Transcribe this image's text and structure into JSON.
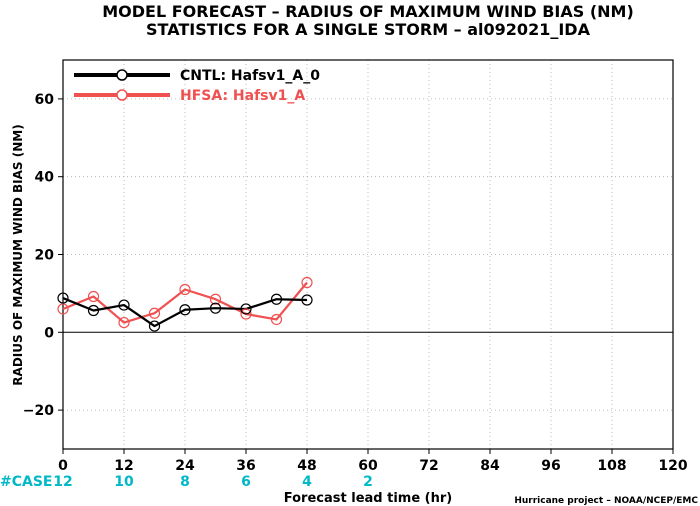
{
  "chart_data": {
    "type": "line",
    "title_line1": "MODEL FORECAST – RADIUS OF MAXIMUM WIND BIAS (NM)",
    "title_line2": "STATISTICS FOR A SINGLE STORM – al092021_IDA",
    "xlabel": "Forecast lead time (hr)",
    "ylabel": "RADIUS OF MAXIMUM WIND BIAS (NM)",
    "xlim": [
      0,
      120
    ],
    "ylim": [
      -30,
      70
    ],
    "x_ticks": [
      0,
      12,
      24,
      36,
      48,
      60,
      72,
      84,
      96,
      108,
      120
    ],
    "y_ticks": [
      -20,
      0,
      20,
      40,
      60
    ],
    "grid": true,
    "legend_position": "top-left",
    "series": [
      {
        "name": "CNTL: Hafsv1_A_0",
        "color": "#000000",
        "x": [
          0,
          6,
          12,
          18,
          24,
          30,
          36,
          42,
          48
        ],
        "values": [
          8.8,
          5.6,
          7.0,
          1.6,
          5.8,
          6.2,
          6.0,
          8.5,
          8.3
        ]
      },
      {
        "name": "HFSA: Hafsv1_A",
        "color": "#f05050",
        "x": [
          0,
          6,
          12,
          18,
          24,
          30,
          36,
          42,
          48
        ],
        "values": [
          6.0,
          9.2,
          2.5,
          4.9,
          11.0,
          8.5,
          4.7,
          3.3,
          12.8
        ]
      }
    ],
    "case_label": "#CASE",
    "case_counts": [
      {
        "x": 0,
        "count": "12"
      },
      {
        "x": 12,
        "count": "10"
      },
      {
        "x": 24,
        "count": "8"
      },
      {
        "x": 36,
        "count": "6"
      },
      {
        "x": 48,
        "count": "4"
      },
      {
        "x": 60,
        "count": "2"
      }
    ],
    "case_color": "#00b8c8",
    "credit": "Hurricane project – NOAA/NCEP/EMC"
  }
}
